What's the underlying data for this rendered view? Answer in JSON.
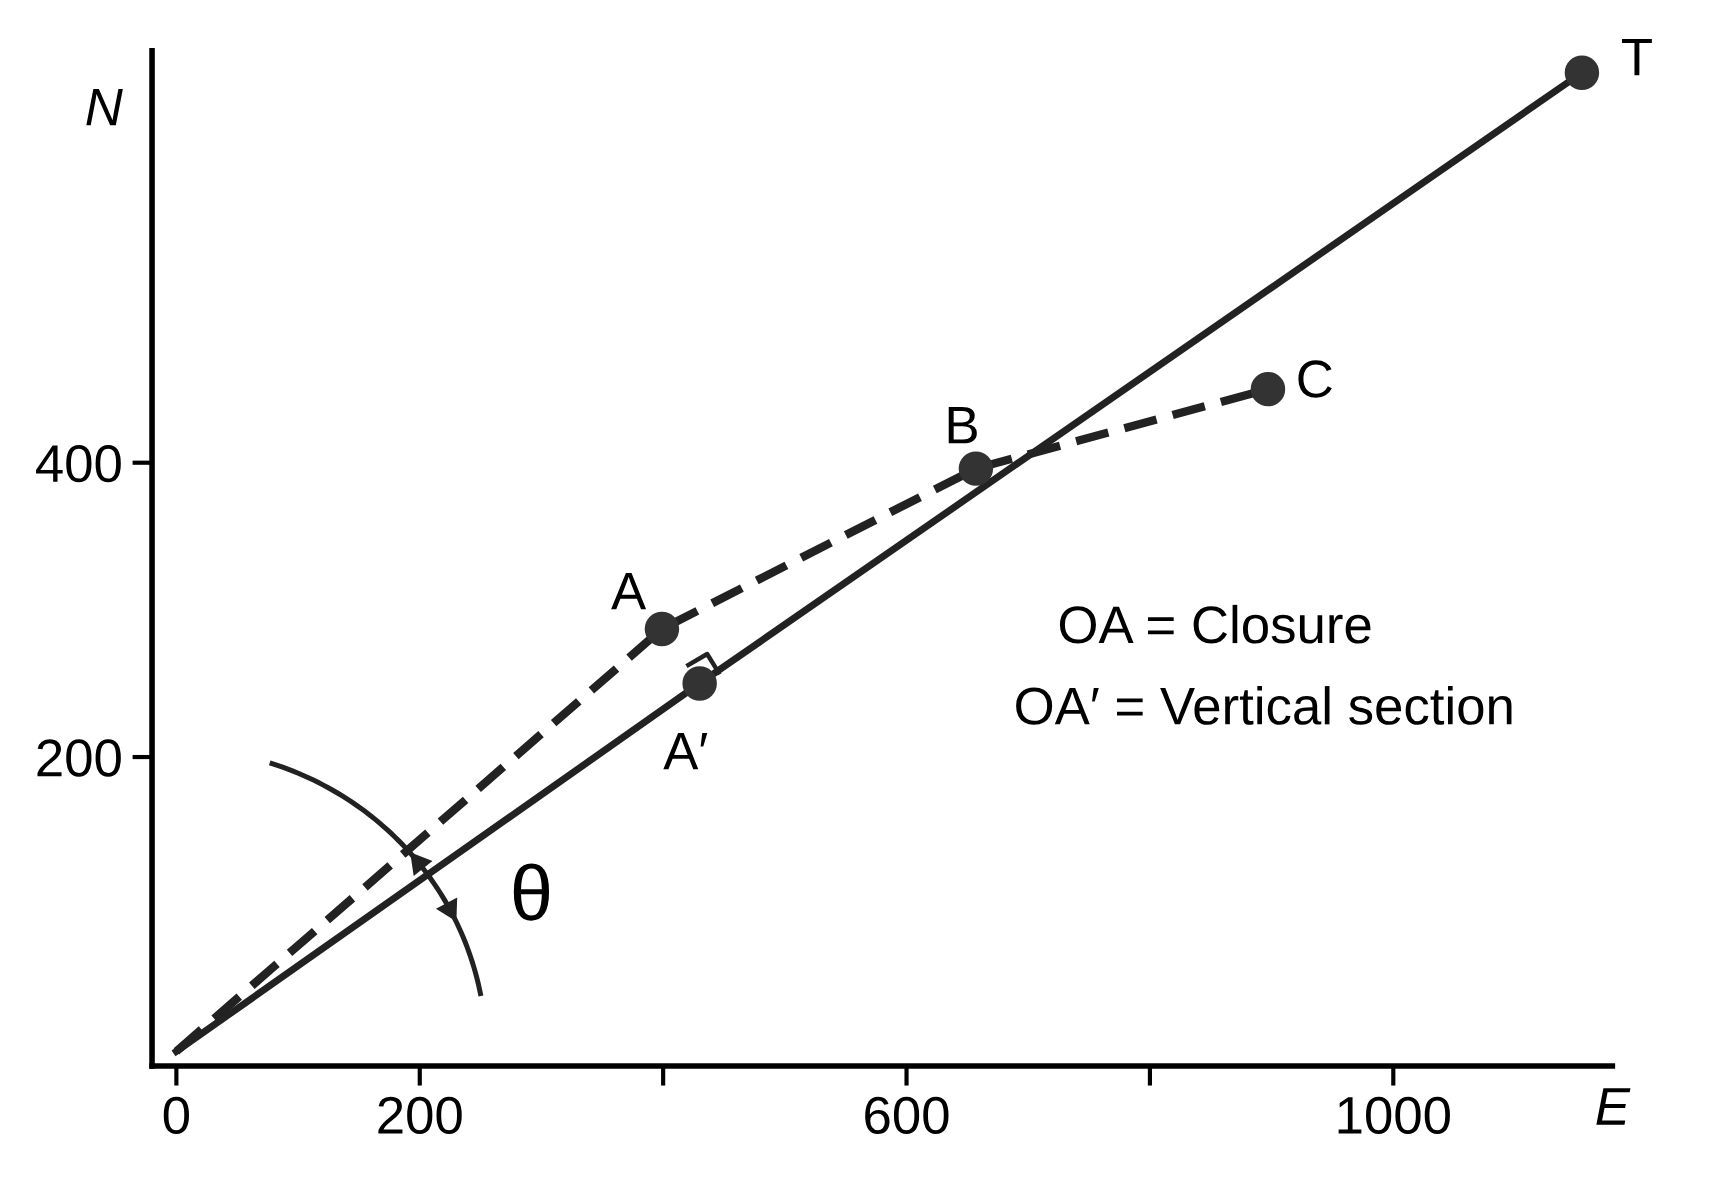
{
  "chart_data": {
    "type": "line",
    "xlabel": "E",
    "ylabel": "N",
    "series": [
      {
        "color": "#222222",
        "line_style": "dashed",
        "marker": "none",
        "x": [
          0,
          399,
          657,
          897
        ],
        "values": [
          0,
          287,
          396,
          450
        ]
      },
      {
        "color": "#222222",
        "line_style": "solid",
        "marker": "none",
        "x": [
          0,
          430,
          1155
        ],
        "values": [
          0,
          250,
          665
        ]
      },
      {
        "type": "scatter",
        "color": "#333333",
        "marker": "circle",
        "x": [
          399,
          430,
          657,
          897,
          1155
        ],
        "values": [
          287,
          250,
          396,
          450,
          665
        ]
      }
    ],
    "annotations": [
      {
        "text": "A",
        "x": 399,
        "y": 287
      },
      {
        "text": "A′",
        "x": 430,
        "y": 250
      },
      {
        "text": "B",
        "x": 657,
        "y": 396
      },
      {
        "text": "C",
        "x": 897,
        "y": 450
      },
      {
        "text": "T",
        "x": 1155,
        "y": 665
      },
      "θ",
      "OA = Closure",
      "OA′ = Vertical section"
    ],
    "xlim": [
      -20,
      1180
    ],
    "ylim": [
      -10,
      680
    ],
    "xticks": [
      0,
      200,
      {
        "value": 400,
        "label": null
      },
      600,
      {
        "value": 800,
        "label": null
      },
      1000
    ],
    "yticks": [
      200,
      400
    ],
    "grid": false,
    "legend": false
  }
}
